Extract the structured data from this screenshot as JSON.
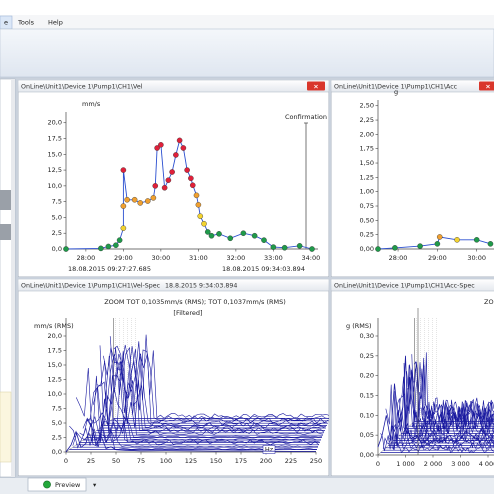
{
  "menu": [
    "e",
    "Tools",
    "Help"
  ],
  "tabs": [
    "Preview"
  ],
  "chart_data": [
    {
      "type": "line",
      "title": "OnLine\\Unit1\\Device 1\\Pump1\\CH1\\Vel",
      "y_label": "mm/s",
      "annotation": "Confirmation",
      "annotation_x": 33.87,
      "date_labels": [
        "18.08.2015 09:27:27.685",
        "18.08.2015 09:34:03.894"
      ],
      "xlim": [
        27.47,
        34.19
      ],
      "ylim": [
        0,
        21.7
      ],
      "xticks": [
        {
          "value": 28,
          "label": "28:00"
        },
        {
          "value": 29,
          "label": "29:00"
        },
        {
          "value": 30,
          "label": "30:00"
        },
        {
          "value": 31,
          "label": "31:00"
        },
        {
          "value": 32,
          "label": "32:00"
        },
        {
          "value": 33,
          "label": "33:00"
        },
        {
          "value": 34,
          "label": "34:00"
        }
      ],
      "yticks": [
        {
          "value": 0,
          "label": "0,0"
        },
        {
          "value": 2.5,
          "label": "2,5"
        },
        {
          "value": 5,
          "label": "5,0"
        },
        {
          "value": 7.5,
          "label": "7,5"
        },
        {
          "value": 10,
          "label": "10,0"
        },
        {
          "value": 12.5,
          "label": "12,5"
        },
        {
          "value": 15,
          "label": "15,0"
        },
        {
          "value": 17.5,
          "label": "17,5"
        },
        {
          "value": 20,
          "label": "20,0"
        }
      ],
      "series": [
        {
          "color": "#2b4fd0",
          "x": [
            27.47,
            28.4,
            28.6,
            28.8,
            28.9,
            29.0,
            29.0,
            29.0,
            29.1,
            29.3,
            29.45,
            29.65,
            29.8,
            29.85,
            29.9,
            30.0,
            30.1,
            30.2,
            30.3,
            30.4,
            30.5,
            30.6,
            30.7,
            30.8,
            30.85,
            30.95,
            31.0,
            31.05,
            31.15,
            31.25,
            31.35,
            31.55,
            31.85,
            32.2,
            32.5,
            32.75,
            33.0,
            33.3,
            33.7,
            34.03
          ],
          "values": [
            0,
            0.1,
            0.4,
            0.6,
            1.4,
            3.3,
            6.8,
            12.5,
            7.8,
            7.8,
            7.3,
            7.6,
            8.1,
            10.0,
            16.0,
            16.5,
            9.7,
            10.9,
            12.2,
            14.9,
            17.2,
            16.0,
            12.5,
            11.2,
            10.1,
            8.5,
            7.0,
            5.2,
            4.0,
            2.7,
            2.1,
            2.4,
            1.7,
            2.5,
            2.1,
            1.4,
            0.3,
            0.2,
            0.5,
            0.0
          ],
          "marker_colors": [
            "#1f9a4a",
            "#1f9a4a",
            "#1f9a4a",
            "#1f9a4a",
            "#1f9a4a",
            "#f2d230",
            "#f0a030",
            "#e0203a",
            "#f0a030",
            "#f0a030",
            "#f0a030",
            "#f0a030",
            "#f0a030",
            "#e0203a",
            "#e0203a",
            "#e0203a",
            "#e0203a",
            "#e0203a",
            "#e0203a",
            "#e0203a",
            "#e0203a",
            "#e0203a",
            "#e0203a",
            "#e0203a",
            "#e0203a",
            "#f0a030",
            "#f0a030",
            "#f2d230",
            "#f2d230",
            "#1f9a4a",
            "#1f9a4a",
            "#1f9a4a",
            "#1f9a4a",
            "#1f9a4a",
            "#1f9a4a",
            "#1f9a4a",
            "#1f9a4a",
            "#1f9a4a",
            "#1f9a4a",
            "#1f9a4a"
          ]
        }
      ]
    },
    {
      "type": "line",
      "title": "OnLine\\Unit1\\Device 1\\Pump1\\CH1\\Acc",
      "y_label": "g",
      "xlim": [
        27.49,
        30.44
      ],
      "ylim": [
        0,
        2.6
      ],
      "xticks": [
        {
          "value": 28,
          "label": "28:00"
        },
        {
          "value": 29,
          "label": "29:00"
        },
        {
          "value": 30,
          "label": "30:00"
        }
      ],
      "yticks": [
        {
          "value": 0,
          "label": "0,00"
        },
        {
          "value": 0.25,
          "label": "0,25"
        },
        {
          "value": 0.5,
          "label": "0,50"
        },
        {
          "value": 0.75,
          "label": "0,75"
        },
        {
          "value": 1,
          "label": "1,00"
        },
        {
          "value": 1.25,
          "label": "1,25"
        },
        {
          "value": 1.5,
          "label": "1,50"
        },
        {
          "value": 1.75,
          "label": "1,75"
        },
        {
          "value": 2,
          "label": "2,00"
        },
        {
          "value": 2.25,
          "label": "2,25"
        },
        {
          "value": 2.5,
          "label": "2,50"
        }
      ],
      "series": [
        {
          "color": "#2b4fd0",
          "x": [
            27.49,
            27.92,
            28.56,
            29.0,
            29.06,
            29.5,
            30.0,
            30.35
          ],
          "values": [
            0,
            0.02,
            0.05,
            0.09,
            0.21,
            0.16,
            0.16,
            0.09
          ],
          "marker_colors": [
            "#1f9a4a",
            "#1f9a4a",
            "#1f9a4a",
            "#1f9a4a",
            "#f0a030",
            "#f2d230",
            "#1f9a4a",
            "#1f9a4a"
          ]
        }
      ]
    },
    {
      "type": "waterfall",
      "title": "OnLine\\Unit1\\Device 1\\Pump1\\CH1\\Vel-Spec",
      "subtitle": "18.8.2015 9:34:03.894",
      "annotation": "ZOOM TOT 0,1035mm/s (RMS); TOT 0,1037mm/s (RMS)",
      "annotation2": "[Filtered]",
      "x_label": "Hz",
      "y_label": "mm/s (RMS)",
      "xlim": [
        0,
        250
      ],
      "ylim": [
        0,
        20
      ],
      "xticks": [
        0,
        25,
        50,
        75,
        100,
        125,
        150,
        175,
        200,
        225,
        250
      ],
      "yticks": [
        {
          "value": 0,
          "label": "0,0"
        },
        {
          "value": 2.5,
          "label": "2,5"
        },
        {
          "value": 5,
          "label": "5,0"
        },
        {
          "value": 7.5,
          "label": "7,5"
        },
        {
          "value": 10,
          "label": "10,0"
        },
        {
          "value": 12.5,
          "label": "12,5"
        },
        {
          "value": 15,
          "label": "15,0"
        },
        {
          "value": 17.5,
          "label": "17,5"
        },
        {
          "value": 20,
          "label": "20,0"
        }
      ],
      "series": [
        {
          "color": "#1a1aa0",
          "x": [
            0,
            5,
            10,
            15,
            20,
            25,
            30,
            35,
            40,
            45,
            50,
            60,
            75,
            100,
            125,
            150,
            175,
            200,
            225,
            250
          ],
          "values": [
            0,
            1.2,
            3.5,
            0.8,
            1.5,
            5,
            1.2,
            2.8,
            0.6,
            0.9,
            0.4,
            0.3,
            0.2,
            0.25,
            0.2,
            0.15,
            0.2,
            0.15,
            0.1,
            0.1
          ]
        }
      ]
    },
    {
      "type": "waterfall",
      "title": "OnLine\\Unit1\\Device 1\\Pump1\\CH1\\Acc-Spec",
      "annotation": "ZO",
      "y_label": "g (RMS)",
      "xlim": [
        0,
        4218
      ],
      "ylim": [
        0,
        0.3
      ],
      "xticks": [
        0,
        {
          "value": 1000,
          "label": "1 000"
        },
        {
          "value": 2000,
          "label": "2 000"
        },
        {
          "value": 3000,
          "label": "3 000"
        },
        {
          "value": 4000,
          "label": "4 000"
        }
      ],
      "yticks": [
        {
          "value": 0,
          "label": "0,00"
        },
        {
          "value": 0.05,
          "label": "0,05"
        },
        {
          "value": 0.1,
          "label": "0,10"
        },
        {
          "value": 0.15,
          "label": "0,15"
        },
        {
          "value": 0.2,
          "label": "0,20"
        },
        {
          "value": 0.25,
          "label": "0,25"
        },
        {
          "value": 0.3,
          "label": "0,30"
        }
      ],
      "series": [
        {
          "color": "#1a1aa0",
          "x": [
            0,
            150,
            300,
            450,
            600,
            750,
            900,
            1000,
            1100,
            1200,
            1400,
            1600,
            1800,
            2000,
            2200,
            2400,
            2600,
            2800,
            3000,
            3200,
            3400,
            3600,
            3800,
            4000,
            4200
          ],
          "values": [
            0.02,
            0.05,
            0.1,
            0.04,
            0.18,
            0.08,
            0.12,
            0.25,
            0.06,
            0.04,
            0.05,
            0.03,
            0.04,
            0.06,
            0.03,
            0.04,
            0.05,
            0.03,
            0.04,
            0.06,
            0.05,
            0.04,
            0.07,
            0.03,
            0.05
          ]
        }
      ]
    }
  ]
}
